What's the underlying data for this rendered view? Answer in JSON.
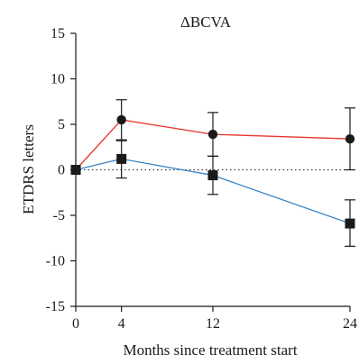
{
  "chart_data": {
    "type": "line",
    "title": "ΔBCVA",
    "xlabel": "Months since treatment start",
    "ylabel": "ETDRS letters",
    "x": [
      0,
      4,
      12,
      24
    ],
    "xticks": [
      "0",
      "4",
      "12",
      "24"
    ],
    "yticks": [
      "15",
      "10",
      "5",
      "0",
      "-5",
      "-10",
      "-15"
    ],
    "xlim": [
      0,
      24
    ],
    "ylim": [
      -15,
      15
    ],
    "reference_line_y": 0,
    "grid": false,
    "legend": "none",
    "series": [
      {
        "marker": "circle",
        "color": "#e8352a",
        "values": [
          0,
          5.5,
          3.9,
          3.4
        ],
        "error": [
          [
            0,
            0
          ],
          [
            -2.3,
            2.2
          ],
          [
            -2.4,
            2.4
          ],
          [
            -3.4,
            3.4
          ]
        ]
      },
      {
        "marker": "square",
        "color": "#3a86c8",
        "values": [
          0,
          1.2,
          -0.6,
          -5.9
        ],
        "error": [
          [
            0,
            0
          ],
          [
            -2.1,
            2.1
          ],
          [
            -2.1,
            2.1
          ],
          [
            -2.5,
            2.6
          ]
        ]
      }
    ]
  }
}
